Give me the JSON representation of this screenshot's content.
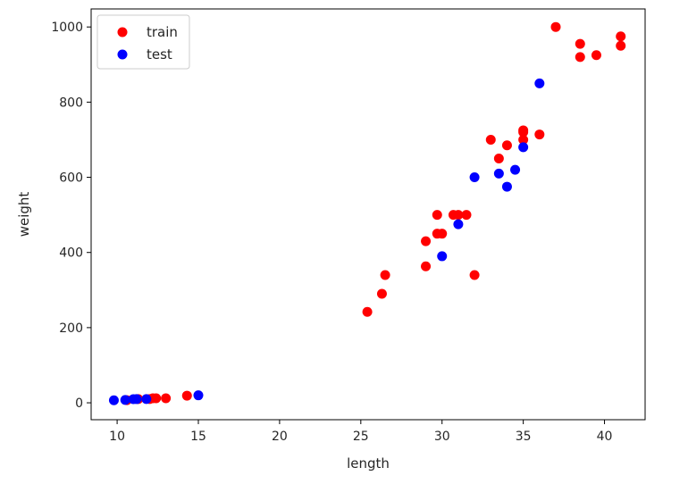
{
  "chart_data": {
    "type": "scatter",
    "title": "",
    "xlabel": "length",
    "ylabel": "weight",
    "xlim": [
      8.4,
      42.5
    ],
    "ylim": [
      -45,
      1048
    ],
    "xticks": [
      10,
      15,
      20,
      25,
      30,
      35,
      40
    ],
    "yticks": [
      0,
      200,
      400,
      600,
      800,
      1000
    ],
    "grid": false,
    "legend": {
      "position": "top-left"
    },
    "series": [
      {
        "name": "train",
        "color": "#ff0000",
        "points": [
          [
            10.6,
            7
          ],
          [
            11.3,
            10
          ],
          [
            12.0,
            10
          ],
          [
            12.2,
            12
          ],
          [
            12.4,
            12
          ],
          [
            13.0,
            12
          ],
          [
            14.3,
            19
          ],
          [
            25.4,
            242
          ],
          [
            26.3,
            290
          ],
          [
            26.5,
            340
          ],
          [
            29.0,
            363
          ],
          [
            29.0,
            430
          ],
          [
            29.7,
            450
          ],
          [
            29.7,
            500
          ],
          [
            30.0,
            450
          ],
          [
            30.7,
            500
          ],
          [
            31.0,
            500
          ],
          [
            31.5,
            500
          ],
          [
            32.0,
            340
          ],
          [
            33.0,
            700
          ],
          [
            33.5,
            650
          ],
          [
            34.0,
            685
          ],
          [
            35.0,
            700
          ],
          [
            35.0,
            725
          ],
          [
            35.0,
            720
          ],
          [
            36.0,
            714
          ],
          [
            37.0,
            1000
          ],
          [
            38.5,
            955
          ],
          [
            38.5,
            920
          ],
          [
            39.5,
            925
          ],
          [
            41.0,
            975
          ],
          [
            41.0,
            950
          ]
        ]
      },
      {
        "name": "test",
        "color": "#0000ff",
        "points": [
          [
            9.8,
            6.7
          ],
          [
            10.5,
            7.5
          ],
          [
            11.0,
            9.7
          ],
          [
            11.2,
            9.8
          ],
          [
            11.8,
            9.9
          ],
          [
            15.0,
            19.9
          ],
          [
            30.0,
            390
          ],
          [
            31.0,
            475
          ],
          [
            32.0,
            600
          ],
          [
            33.5,
            610
          ],
          [
            34.0,
            575
          ],
          [
            34.5,
            620
          ],
          [
            35.0,
            680
          ],
          [
            36.0,
            850
          ]
        ]
      }
    ]
  }
}
